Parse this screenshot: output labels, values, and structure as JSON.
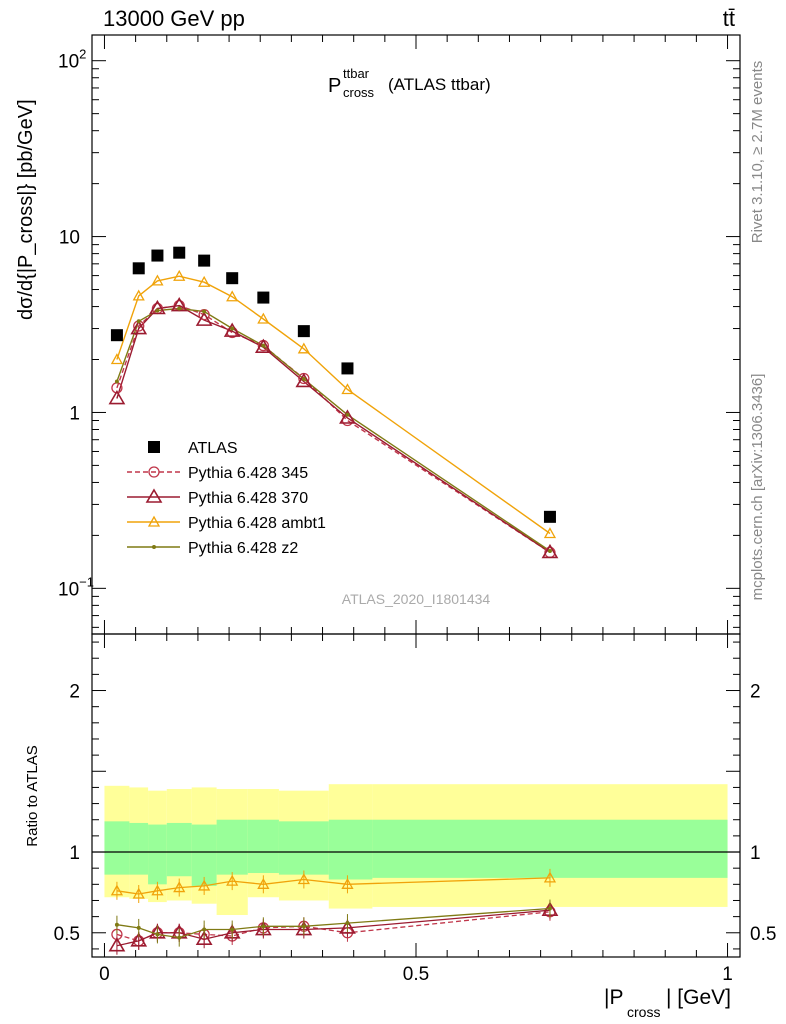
{
  "header": {
    "left": "13000 GeV pp",
    "right": "tt̄"
  },
  "side_labels": {
    "rivet": "Rivet 3.1.10, ≥ 2.7M events",
    "mcplots": "mcplots.cern.ch [arXiv:1306.3436]"
  },
  "chart_data": [
    {
      "type": "scatter",
      "panel": "main",
      "title_main": "P",
      "title_sup": "ttbar",
      "title_sub": "cross",
      "title_suffix": "(ATLAS ttbar)",
      "watermark": "ATLAS_2020_I1801434",
      "ylabel": "dσ/d{|P_cross|} [pb/GeV]",
      "yscale": "log",
      "ylim": [
        0.055,
        140
      ],
      "xlim": [
        -0.02,
        1.02
      ],
      "yticks": [
        {
          "v": 100,
          "base": "10",
          "exp": "2"
        },
        {
          "v": 10,
          "base": "10",
          "exp": ""
        },
        {
          "v": 1,
          "base": "1",
          "exp": ""
        },
        {
          "v": 0.1,
          "base": "10",
          "exp": "−1"
        }
      ],
      "legend": [
        {
          "label": "ATLAS",
          "color": "#000000",
          "style": "square"
        },
        {
          "label": "Pythia 6.428 345",
          "color": "#c0364a",
          "style": "circle-dashed"
        },
        {
          "label": "Pythia 6.428 370",
          "color": "#9b1b30",
          "style": "triangle"
        },
        {
          "label": "Pythia 6.428 ambt1",
          "color": "#f0a30a",
          "style": "triangle-small"
        },
        {
          "label": "Pythia 6.428 z2",
          "color": "#7f7a14",
          "style": "dot"
        }
      ],
      "x": [
        0.02,
        0.055,
        0.085,
        0.12,
        0.16,
        0.205,
        0.255,
        0.32,
        0.39,
        0.715
      ],
      "series": [
        {
          "name": "ATLAS",
          "values": [
            2.75,
            6.6,
            7.8,
            8.1,
            7.3,
            5.8,
            4.5,
            2.9,
            1.78,
            0.255
          ]
        },
        {
          "name": "Pythia 6.428 345",
          "values": [
            1.38,
            3.1,
            3.9,
            4.05,
            3.6,
            2.85,
            2.4,
            1.56,
            0.9,
            0.16
          ]
        },
        {
          "name": "Pythia 6.428 370",
          "values": [
            1.2,
            3.0,
            3.9,
            4.05,
            3.35,
            2.9,
            2.35,
            1.5,
            0.93,
            0.16
          ]
        },
        {
          "name": "Pythia 6.428 ambt1",
          "values": [
            2.0,
            4.6,
            5.6,
            5.95,
            5.5,
            4.55,
            3.4,
            2.3,
            1.35,
            0.205
          ]
        },
        {
          "name": "Pythia 6.428 z2",
          "values": [
            1.5,
            3.3,
            3.8,
            3.9,
            3.75,
            3.0,
            2.4,
            1.55,
            0.97,
            0.163
          ]
        }
      ]
    },
    {
      "type": "line",
      "panel": "ratio",
      "ylabel": "Ratio to ATLAS",
      "xlabel_main": "|P",
      "xlabel_sub": "cross",
      "xlabel_suffix": "| [GeV]",
      "ylim": [
        0.35,
        2.35
      ],
      "xlim": [
        -0.02,
        1.02
      ],
      "yticks": [
        {
          "v": 2,
          "label": "2"
        },
        {
          "v": 1,
          "label": "1"
        },
        {
          "v": 0.5,
          "label": "0.5"
        }
      ],
      "xticks": [
        {
          "v": 0,
          "label": "0"
        },
        {
          "v": 0.5,
          "label": "0.5"
        },
        {
          "v": 1,
          "label": "1"
        }
      ],
      "bin_edges": [
        0,
        0.04,
        0.07,
        0.1,
        0.14,
        0.18,
        0.23,
        0.28,
        0.36,
        0.43,
        1.0
      ],
      "band_yellow": [
        [
          0.72,
          1.41
        ],
        [
          0.71,
          1.4
        ],
        [
          0.69,
          1.38
        ],
        [
          0.7,
          1.39
        ],
        [
          0.68,
          1.4
        ],
        [
          0.61,
          1.39
        ],
        [
          0.72,
          1.39
        ],
        [
          0.7,
          1.38
        ],
        [
          0.65,
          1.42
        ],
        [
          0.66,
          1.42
        ]
      ],
      "band_green": [
        [
          0.86,
          1.19
        ],
        [
          0.86,
          1.18
        ],
        [
          0.8,
          1.17
        ],
        [
          0.85,
          1.18
        ],
        [
          0.79,
          1.17
        ],
        [
          0.86,
          1.2
        ],
        [
          0.87,
          1.2
        ],
        [
          0.86,
          1.19
        ],
        [
          0.83,
          1.2
        ],
        [
          0.84,
          1.2
        ]
      ],
      "x": [
        0.02,
        0.055,
        0.085,
        0.12,
        0.16,
        0.205,
        0.255,
        0.32,
        0.39,
        0.715
      ],
      "series": [
        {
          "name": "Pythia 6.428 345",
          "values": [
            0.49,
            0.45,
            0.5,
            0.5,
            0.49,
            0.48,
            0.53,
            0.54,
            0.5,
            0.63
          ]
        },
        {
          "name": "Pythia 6.428 370",
          "values": [
            0.42,
            0.45,
            0.5,
            0.5,
            0.46,
            0.5,
            0.52,
            0.52,
            0.53,
            0.64
          ]
        },
        {
          "name": "Pythia 6.428 ambt1",
          "values": [
            0.76,
            0.74,
            0.76,
            0.78,
            0.79,
            0.82,
            0.8,
            0.83,
            0.8,
            0.84
          ]
        },
        {
          "name": "Pythia 6.428 z2",
          "values": [
            0.55,
            0.53,
            0.49,
            0.47,
            0.52,
            0.52,
            0.54,
            0.54,
            0.56,
            0.65
          ]
        }
      ]
    }
  ]
}
